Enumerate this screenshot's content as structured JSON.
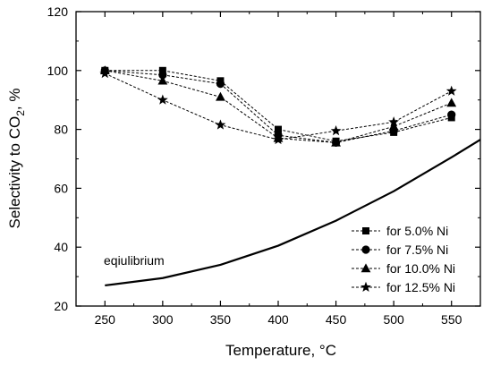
{
  "chart_data": {
    "type": "line",
    "xlabel_main": "Temperature, ",
    "xlabel_unit": "°C",
    "ylabel_main": "Selectivity to CO",
    "ylabel_sub": "2",
    "ylabel_tail": ", %",
    "xlim": [
      225,
      575
    ],
    "ylim": [
      20,
      120
    ],
    "xticks": [
      250,
      300,
      350,
      400,
      450,
      500,
      550
    ],
    "yticks": [
      20,
      40,
      60,
      80,
      100,
      120
    ],
    "grid": false,
    "legend_position": "bottom-right",
    "x": [
      250,
      300,
      350,
      400,
      450,
      500,
      550
    ],
    "series": [
      {
        "name": "for 5.0% Ni",
        "marker": "square",
        "values": [
          100,
          100,
          96.5,
          80,
          76,
          79,
          84
        ]
      },
      {
        "name": "for 7.5% Ni",
        "marker": "circle",
        "values": [
          100,
          98.5,
          95.5,
          78,
          75.5,
          79.5,
          85
        ]
      },
      {
        "name": "for 10.0% Ni",
        "marker": "triangle",
        "values": [
          100,
          96.5,
          91,
          77,
          75.5,
          81,
          89
        ]
      },
      {
        "name": "for 12.5% Ni",
        "marker": "star",
        "values": [
          99,
          90,
          81.5,
          76.5,
          79.5,
          82.5,
          93
        ]
      }
    ],
    "equilibrium": {
      "label": "eqiulibrium",
      "x": [
        250,
        300,
        350,
        400,
        450,
        500,
        550,
        575
      ],
      "values": [
        27,
        29.5,
        34,
        40.5,
        49,
        59,
        70.5,
        76.5
      ]
    }
  }
}
